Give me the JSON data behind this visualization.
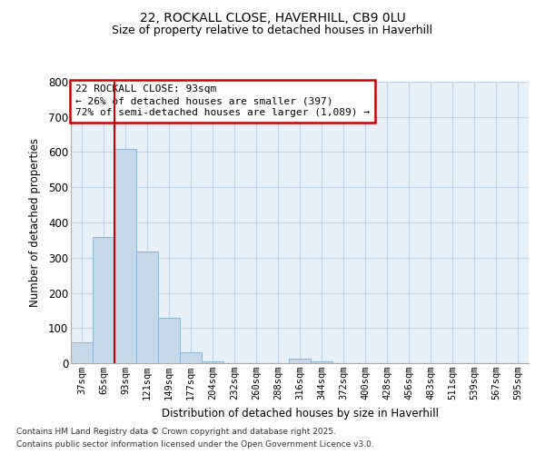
{
  "title_line1": "22, ROCKALL CLOSE, HAVERHILL, CB9 0LU",
  "title_line2": "Size of property relative to detached houses in Haverhill",
  "xlabel": "Distribution of detached houses by size in Haverhill",
  "ylabel": "Number of detached properties",
  "bar_color": "#c5d8ea",
  "bar_edge_color": "#8ab4d4",
  "grid_color": "#c0d4e8",
  "background_color": "#e8f0f8",
  "annotation_box_color": "#cc0000",
  "vline_color": "#cc0000",
  "footnote1": "Contains HM Land Registry data © Crown copyright and database right 2025.",
  "footnote2": "Contains public sector information licensed under the Open Government Licence v3.0.",
  "annotation_line1": "22 ROCKALL CLOSE: 93sqm",
  "annotation_line2": "← 26% of detached houses are smaller (397)",
  "annotation_line3": "72% of semi-detached houses are larger (1,089) →",
  "categories": [
    "37sqm",
    "65sqm",
    "93sqm",
    "121sqm",
    "149sqm",
    "177sqm",
    "204sqm",
    "232sqm",
    "260sqm",
    "288sqm",
    "316sqm",
    "344sqm",
    "372sqm",
    "400sqm",
    "428sqm",
    "456sqm",
    "483sqm",
    "511sqm",
    "539sqm",
    "567sqm",
    "595sqm"
  ],
  "values": [
    60,
    358,
    610,
    318,
    128,
    30,
    5,
    0,
    0,
    0,
    14,
    5,
    0,
    0,
    0,
    0,
    0,
    0,
    0,
    0,
    0
  ],
  "ylim": [
    0,
    800
  ],
  "yticks": [
    0,
    100,
    200,
    300,
    400,
    500,
    600,
    700,
    800
  ],
  "vline_x_index": 2
}
